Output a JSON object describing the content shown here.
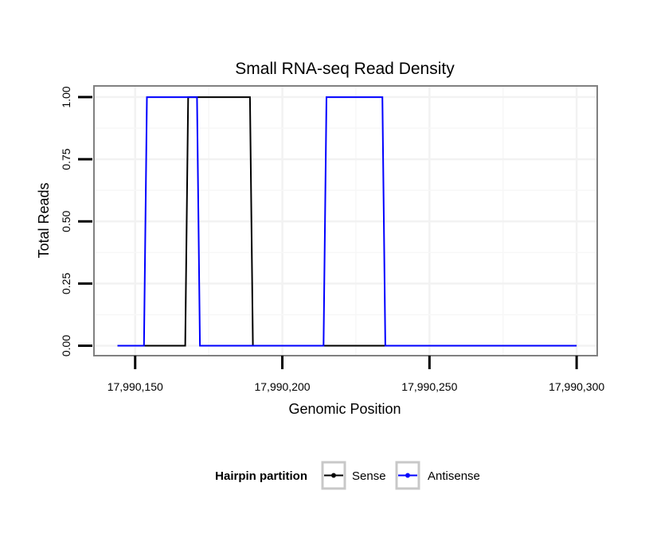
{
  "chart_data": {
    "type": "line",
    "title": "Small RNA-seq Read Density",
    "xlabel": "Genomic Position",
    "ylabel": "Total Reads",
    "xlim": [
      17990136,
      17990307
    ],
    "ylim": [
      -0.04,
      1.045
    ],
    "x_ticks": [
      17990150,
      17990200,
      17990250,
      17990300
    ],
    "x_tick_labels": [
      "17,990,150",
      "17,990,200",
      "17,990,250",
      "17,990,300"
    ],
    "y_ticks": [
      0,
      0.25,
      0.5,
      0.75,
      1
    ],
    "y_tick_labels": [
      "0.00",
      "0.25",
      "0.50",
      "0.75",
      "1.00"
    ],
    "grid": true,
    "legend": {
      "title": "Hairpin partition",
      "position": "bottom",
      "entries": [
        "Sense",
        "Antisense"
      ]
    },
    "series": [
      {
        "name": "Sense",
        "color": "#000000",
        "x": [
          17990144,
          17990167,
          17990168,
          17990189,
          17990190,
          17990300
        ],
        "y": [
          0,
          0,
          1,
          1,
          0,
          0
        ]
      },
      {
        "name": "Antisense",
        "color": "#0000ff",
        "x": [
          17990144,
          17990153,
          17990154,
          17990161,
          17990171,
          17990172,
          17990177,
          17990214,
          17990215,
          17990234,
          17990235,
          17990300
        ],
        "y": [
          0,
          0,
          1,
          1,
          1,
          0,
          0,
          0,
          1,
          1,
          0,
          0
        ]
      }
    ]
  }
}
